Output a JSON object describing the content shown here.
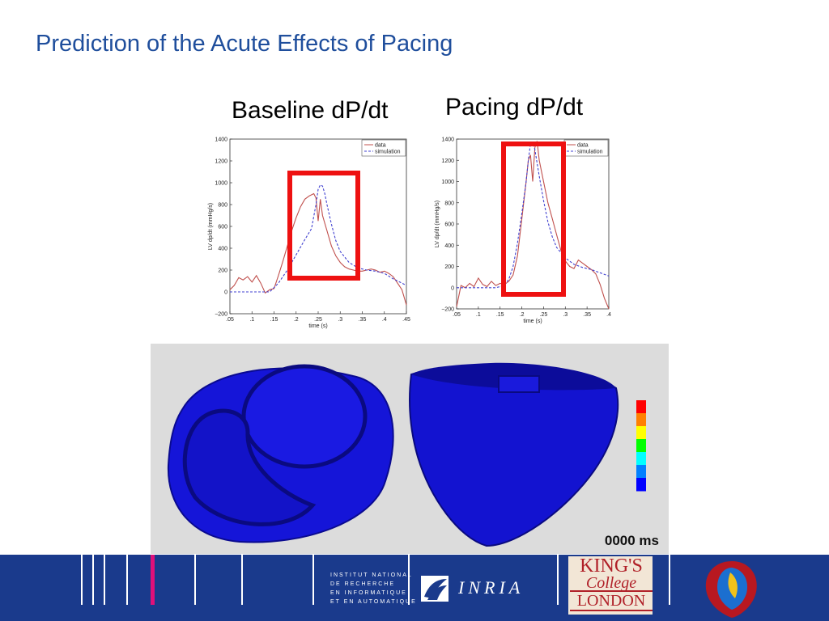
{
  "slide": {
    "title": "Prediction of the Acute Effects of Pacing"
  },
  "chart_data": [
    {
      "type": "line",
      "title": "Baseline dP/dt",
      "xlabel": "time (s)",
      "ylabel": "LV dp/dt (mmHg/s)",
      "xlim": [
        0.05,
        0.45
      ],
      "ylim": [
        -200,
        1400
      ],
      "xticks": [
        0.05,
        0.1,
        0.15,
        0.2,
        0.25,
        0.3,
        0.35,
        0.4,
        0.45
      ],
      "yticks": [
        -200,
        0,
        200,
        400,
        600,
        800,
        1000,
        1200,
        1400
      ],
      "legend_position": "top-right",
      "series": [
        {
          "name": "data",
          "color": "#c0504d",
          "style": "solid",
          "x": [
            0.05,
            0.06,
            0.07,
            0.08,
            0.09,
            0.1,
            0.11,
            0.12,
            0.13,
            0.14,
            0.15,
            0.16,
            0.17,
            0.18,
            0.19,
            0.2,
            0.21,
            0.22,
            0.23,
            0.24,
            0.245,
            0.25,
            0.255,
            0.26,
            0.27,
            0.28,
            0.29,
            0.3,
            0.31,
            0.32,
            0.33,
            0.34,
            0.35,
            0.36,
            0.37,
            0.38,
            0.39,
            0.4,
            0.41,
            0.42,
            0.43,
            0.44,
            0.45
          ],
          "y": [
            20,
            60,
            130,
            110,
            140,
            90,
            150,
            80,
            -10,
            20,
            30,
            150,
            280,
            420,
            560,
            680,
            780,
            850,
            880,
            900,
            860,
            650,
            850,
            700,
            560,
            420,
            330,
            270,
            230,
            210,
            200,
            190,
            190,
            200,
            210,
            200,
            180,
            190,
            170,
            140,
            80,
            20,
            -120
          ]
        },
        {
          "name": "simulation",
          "color": "#4040d0",
          "style": "dashed",
          "x": [
            0.05,
            0.08,
            0.11,
            0.14,
            0.16,
            0.18,
            0.2,
            0.22,
            0.235,
            0.245,
            0.25,
            0.255,
            0.26,
            0.265,
            0.27,
            0.28,
            0.29,
            0.3,
            0.32,
            0.34,
            0.36,
            0.38,
            0.4,
            0.42,
            0.45
          ],
          "y": [
            0,
            0,
            0,
            0,
            80,
            200,
            340,
            480,
            580,
            800,
            940,
            980,
            970,
            900,
            800,
            620,
            470,
            370,
            270,
            220,
            200,
            190,
            170,
            120,
            60
          ]
        }
      ]
    },
    {
      "type": "line",
      "title": "Pacing dP/dt",
      "xlabel": "time (s)",
      "ylabel": "LV dp/dt (mmHg/s)",
      "xlim": [
        0.05,
        0.4
      ],
      "ylim": [
        -200,
        1400
      ],
      "xticks": [
        0.05,
        0.1,
        0.15,
        0.2,
        0.25,
        0.3,
        0.35,
        0.4
      ],
      "yticks": [
        -200,
        0,
        200,
        400,
        600,
        800,
        1000,
        1200,
        1400
      ],
      "legend_position": "top-right",
      "series": [
        {
          "name": "data",
          "color": "#c0504d",
          "style": "solid",
          "x": [
            0.05,
            0.06,
            0.07,
            0.08,
            0.09,
            0.1,
            0.11,
            0.12,
            0.13,
            0.14,
            0.15,
            0.16,
            0.17,
            0.18,
            0.19,
            0.2,
            0.21,
            0.215,
            0.22,
            0.225,
            0.23,
            0.235,
            0.24,
            0.25,
            0.26,
            0.27,
            0.28,
            0.29,
            0.3,
            0.31,
            0.32,
            0.33,
            0.34,
            0.35,
            0.36,
            0.37,
            0.38,
            0.39,
            0.4
          ],
          "y": [
            -180,
            20,
            0,
            40,
            10,
            90,
            30,
            10,
            60,
            20,
            40,
            30,
            60,
            120,
            300,
            650,
            1000,
            1200,
            1250,
            1000,
            1320,
            1380,
            1200,
            1000,
            800,
            650,
            500,
            350,
            250,
            200,
            180,
            260,
            230,
            200,
            170,
            130,
            30,
            -100,
            -200
          ]
        },
        {
          "name": "simulation",
          "color": "#4040d0",
          "style": "dashed",
          "x": [
            0.05,
            0.08,
            0.11,
            0.14,
            0.16,
            0.17,
            0.18,
            0.19,
            0.2,
            0.21,
            0.215,
            0.22,
            0.225,
            0.23,
            0.24,
            0.25,
            0.26,
            0.27,
            0.28,
            0.3,
            0.32,
            0.34,
            0.36,
            0.38,
            0.4
          ],
          "y": [
            0,
            0,
            0,
            0,
            20,
            80,
            200,
            420,
            700,
            1000,
            1200,
            1360,
            1370,
            1300,
            1050,
            820,
            620,
            480,
            380,
            280,
            220,
            190,
            170,
            140,
            110
          ]
        }
      ]
    }
  ],
  "heart_panel": {
    "time_readout": "0000 ms",
    "colorbar_colors": [
      "#ff0000",
      "#ff8000",
      "#ffff00",
      "#00ff00",
      "#00ffff",
      "#0080ff",
      "#0000ff"
    ],
    "mesh_color": "#1212d8"
  },
  "footer": {
    "inria_lines": [
      "INSTITUT NATIONAL",
      "DE RECHERCHE",
      "EN INFORMATIQUE",
      "ET EN AUTOMATIQUE"
    ],
    "inria_word": "INRIA",
    "kings_lines": [
      "KING'S",
      "College",
      "LONDON"
    ]
  }
}
